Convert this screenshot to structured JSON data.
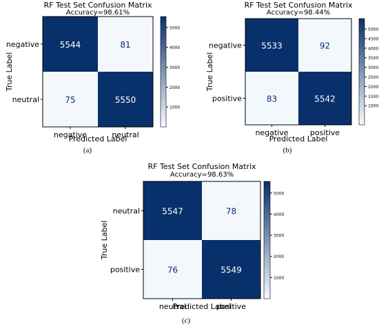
{
  "colors": {
    "cell_low": "#f7fbff",
    "cell_high": "#08306b",
    "text_on_dark": "#ffffff",
    "text_on_light": "#08306b",
    "frame": "#000000",
    "background": "#ffffff"
  },
  "chart_data": [
    {
      "type": "heatmap",
      "panel_caption": "(a)",
      "title": "RF Test Set Confusion Matrix",
      "subtitle": "Accuracy=98.61%",
      "xlabel": "Predicted Label",
      "ylabel": "True Label",
      "x_categories": [
        "negative",
        "neutral"
      ],
      "y_categories": [
        "negative",
        "neutral"
      ],
      "values": [
        [
          5544,
          81
        ],
        [
          75,
          5550
        ]
      ],
      "colorbar": {
        "min": 0,
        "max": 5550,
        "ticks": [
          1000,
          2000,
          3000,
          4000,
          5000
        ],
        "placement": "right"
      }
    },
    {
      "type": "heatmap",
      "panel_caption": "(b)",
      "title": "RF Test Set Confusion Matrix",
      "subtitle": "Accuracy=98.44%",
      "xlabel": "Predicted Label",
      "ylabel": "True Label",
      "x_categories": [
        "negative",
        "positive"
      ],
      "y_categories": [
        "negative",
        "positive"
      ],
      "values": [
        [
          5533,
          92
        ],
        [
          83,
          5542
        ]
      ],
      "colorbar": {
        "min": 0,
        "max": 5542,
        "ticks": [
          1000,
          1500,
          2000,
          2500,
          3000,
          3500,
          4000,
          4500,
          5000
        ],
        "placement": "right"
      }
    },
    {
      "type": "heatmap",
      "panel_caption": "(c)",
      "title": "RF Test Set Confusion Matrix",
      "subtitle": "Accuracy=98.63%",
      "xlabel": "Predicted Label",
      "ylabel": "True Label",
      "x_categories": [
        "neutral",
        "positive"
      ],
      "y_categories": [
        "neutral",
        "positive"
      ],
      "values": [
        [
          5547,
          78
        ],
        [
          76,
          5549
        ]
      ],
      "colorbar": {
        "min": 0,
        "max": 5549,
        "ticks": [
          1000,
          2000,
          3000,
          4000,
          5000
        ],
        "placement": "right"
      }
    }
  ]
}
